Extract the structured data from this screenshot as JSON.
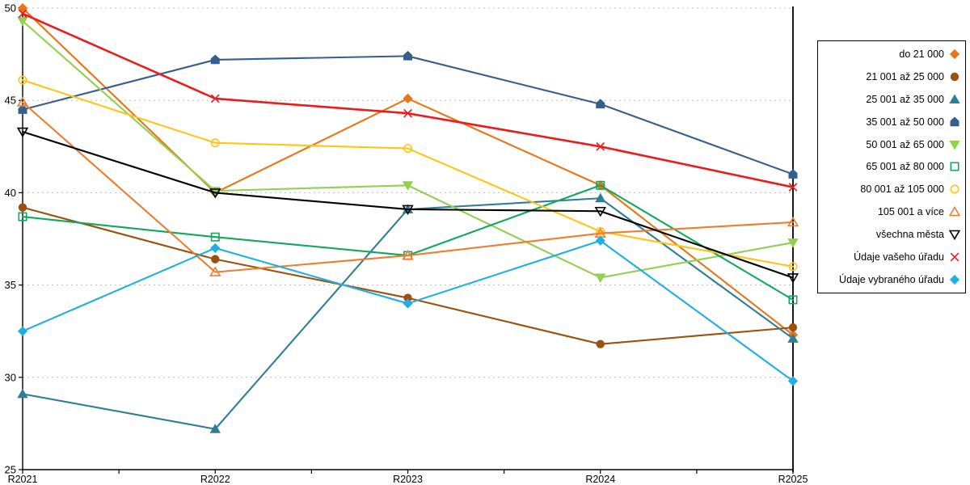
{
  "chart_data": {
    "type": "line",
    "title": "",
    "xlabel": "",
    "ylabel": "",
    "categories": [
      "R2021",
      "R2022",
      "R2023",
      "R2024",
      "R2025"
    ],
    "ylim": [
      25,
      50
    ],
    "ytick_step": 5,
    "y_tick_labels": [
      "25",
      "30",
      "35",
      "40",
      "45",
      "50"
    ],
    "grid": "horizontal-dashed",
    "gridline_color": "#BFBFBF",
    "axis_color": "#000000",
    "legend_position": "right-box",
    "highlight_column": "R2025",
    "highlight_line_color": "#000000",
    "series": [
      {
        "name": "do 21 000",
        "marker": "diamond",
        "fill": "filled",
        "color": "#E87517",
        "values": [
          50.0,
          40.0,
          45.1,
          40.4,
          32.3
        ]
      },
      {
        "name": "21 001 až 25 000",
        "marker": "circle",
        "fill": "filled",
        "color": "#9C510E",
        "values": [
          39.2,
          36.4,
          34.3,
          31.8,
          32.7
        ]
      },
      {
        "name": "25 001 až 35 000",
        "marker": "triangle-up",
        "fill": "filled",
        "color": "#2E7E95",
        "values": [
          29.1,
          27.2,
          39.1,
          39.7,
          32.1
        ]
      },
      {
        "name": "35 001 až 50 000",
        "marker": "house",
        "fill": "filled",
        "color": "#365F8D",
        "values": [
          44.5,
          47.2,
          47.4,
          44.8,
          41.0
        ]
      },
      {
        "name": "50 001 až 65 000",
        "marker": "triangle-down",
        "fill": "filled",
        "color": "#92D050",
        "values": [
          49.3,
          40.1,
          40.4,
          35.4,
          37.3
        ]
      },
      {
        "name": "65 001 až 80 000",
        "marker": "square",
        "fill": "open",
        "color": "#10A95C",
        "values": [
          38.7,
          37.6,
          36.6,
          40.4,
          34.2
        ]
      },
      {
        "name": "80 001 až 105 000",
        "marker": "circle",
        "fill": "open",
        "color": "#FFC516",
        "values": [
          46.1,
          42.7,
          42.4,
          37.9,
          36.0
        ]
      },
      {
        "name": "105 001 a více",
        "marker": "triangle-up",
        "fill": "open",
        "color": "#EF7D2E",
        "values": [
          44.9,
          35.7,
          36.6,
          37.8,
          38.4
        ]
      },
      {
        "name": "všechna města",
        "marker": "triangle-down",
        "fill": "open",
        "color": "#000000",
        "values": [
          43.3,
          40.0,
          39.1,
          39.0,
          35.4
        ]
      },
      {
        "name": "Údaje vašeho úřadu",
        "marker": "x",
        "fill": "open",
        "color": "#ED1C1C",
        "values": [
          49.7,
          45.1,
          44.3,
          42.5,
          40.3
        ]
      },
      {
        "name": "Údaje vybraného úřadu",
        "marker": "diamond",
        "fill": "filled",
        "color": "#20AEE5",
        "values": [
          32.5,
          37.0,
          34.0,
          37.4,
          29.8
        ]
      }
    ]
  }
}
